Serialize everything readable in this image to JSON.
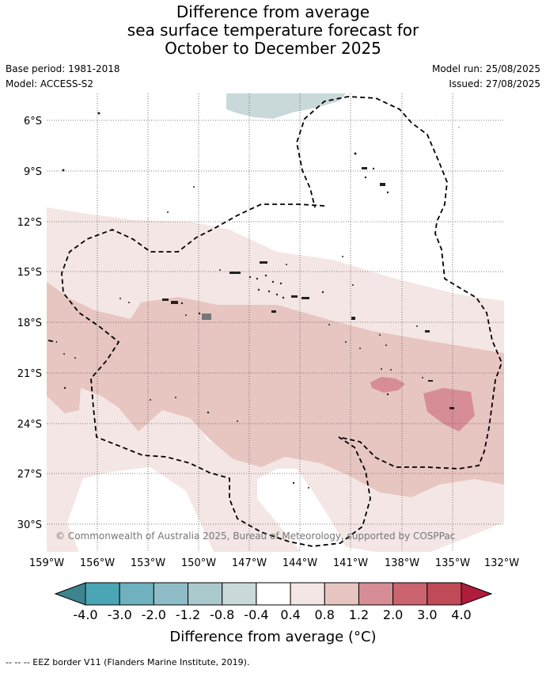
{
  "title": {
    "line1": "Difference from average",
    "line2": "sea surface temperature forecast for",
    "line3": "October to December 2025"
  },
  "meta": {
    "base_period": "Base period: 1981-2018",
    "model": "Model: ACCESS-S2",
    "model_run": "Model run: 25/08/2025",
    "issued": "Issued: 27/08/2025"
  },
  "map": {
    "lat_labels": [
      "6°S",
      "9°S",
      "12°S",
      "15°S",
      "18°S",
      "21°S",
      "24°S",
      "27°S",
      "30°S"
    ],
    "lon_labels": [
      "159°W",
      "156°W",
      "153°W",
      "150°W",
      "147°W",
      "144°W",
      "141°W",
      "138°W",
      "135°W",
      "132°W"
    ],
    "copyright": "© Commonwealth of Australia 2025, Bureau of Meteorology, supported by COSPPac"
  },
  "colorbar": {
    "ticks": [
      "-4.0",
      "-3.0",
      "-2.0",
      "-1.2",
      "-0.8",
      "-0.4",
      "0.4",
      "0.8",
      "1.2",
      "2.0",
      "3.0",
      "4.0"
    ],
    "colors": [
      "#3d8390",
      "#4aa5b5",
      "#6fb1bf",
      "#8fbdc7",
      "#a9c9cd",
      "#c9d8d9",
      "#ffffff",
      "#f4e6e4",
      "#e7c5c0",
      "#d68d96",
      "#cc6470",
      "#c04a58",
      "#b01c3c"
    ],
    "label": "Difference from average (°C)"
  },
  "footer": {
    "legend": "-- -- -- EEZ border V11 (Flanders Marine Institute, 2019)."
  }
}
